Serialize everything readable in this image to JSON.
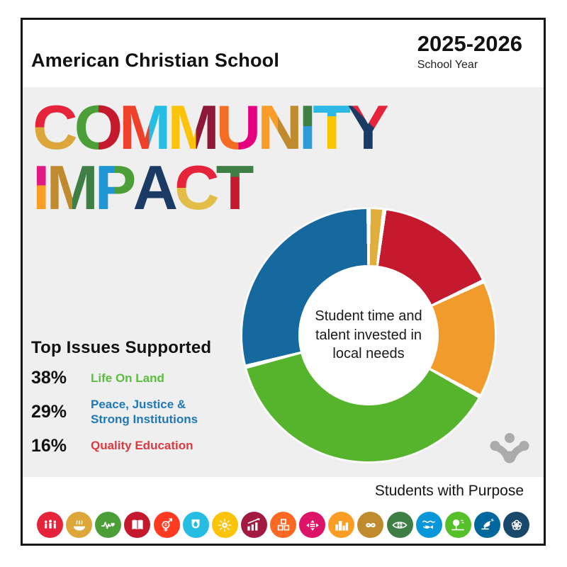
{
  "header": {
    "school_name": "American Christian School",
    "year": "2025-2026",
    "year_label": "School Year"
  },
  "title": {
    "line1": [
      {
        "ch": "C",
        "c1": "#E5243B",
        "c2": "#DDA63A",
        "dir": "b",
        "split": 50
      },
      {
        "ch": "O",
        "c1": "#4C9F38",
        "c2": "#C5192D",
        "dir": "r",
        "split": 50
      },
      {
        "ch": "M",
        "c1": "#EF402B",
        "c2": "#26BDE2",
        "dir": "r",
        "split": 58
      },
      {
        "ch": "M",
        "c1": "#FCC30B",
        "c2": "#8F1838",
        "dir": "r",
        "split": 55
      },
      {
        "ch": "U",
        "c1": "#F36D25",
        "c2": "#E5007D",
        "dir": "r",
        "split": 50
      },
      {
        "ch": "N",
        "c1": "#F99D26",
        "c2": "#BF8B2E",
        "dir": "r",
        "split": 45
      },
      {
        "ch": "I",
        "c1": "#3F7E44",
        "c2": "#2C9BD8",
        "dir": "b",
        "split": 48
      },
      {
        "ch": "T",
        "c1": "#2EB8E6",
        "c2": "#F7C500",
        "dir": "b",
        "split": 32
      },
      {
        "ch": "Y",
        "c1": "#1B3A64",
        "c2": "#E5243B",
        "dir": "d",
        "split": 55
      }
    ],
    "line2": [
      {
        "ch": "I",
        "c1": "#E01A83",
        "c2": "#F99D26",
        "dir": "b",
        "split": 46
      },
      {
        "ch": "M",
        "c1": "#BF8B2E",
        "c2": "#3F7E44",
        "dir": "r",
        "split": 50
      },
      {
        "ch": "P",
        "c1": "#2196D4",
        "c2": "#4C9F38",
        "dir": "r",
        "split": 48
      },
      {
        "ch": "A",
        "c1": "#1B3A64",
        "c2": "#1B3A64",
        "dir": "b",
        "split": 50
      },
      {
        "ch": "C",
        "c1": "#E5243B",
        "c2": "#E2BE49",
        "dir": "b",
        "split": 50
      },
      {
        "ch": "T",
        "c1": "#3F7E44",
        "c2": "#C5192D",
        "dir": "b",
        "split": 32
      }
    ]
  },
  "chart_data": {
    "type": "pie",
    "variant": "donut",
    "center_label": "Student time and talent invested in local needs",
    "start_angle_deg": 0,
    "direction": "clockwise",
    "total": 100,
    "segments": [
      {
        "label": "",
        "value": 2,
        "color": "#DFAE3C"
      },
      {
        "label": "Quality Education",
        "value": 16,
        "color": "#C5192D"
      },
      {
        "label": "",
        "value": 15,
        "color": "#F19B2C"
      },
      {
        "label": "Life On Land",
        "value": 38,
        "color": "#56B42C"
      },
      {
        "label": "Peace, Justice & Strong Institutions",
        "value": 29,
        "color": "#16699F"
      }
    ]
  },
  "top_issues": {
    "heading": "Top Issues Supported",
    "items": [
      {
        "percent": "38%",
        "label": "Life On Land",
        "color": "#5ABE3C"
      },
      {
        "percent": "29%",
        "label": "Peace, Justice & Strong Institutions",
        "color": "#1F78B8"
      },
      {
        "percent": "16%",
        "label": "Quality Education",
        "color": "#DB3A42"
      }
    ]
  },
  "footer": {
    "brand": "Students with Purpose"
  },
  "logo_color": "#ABABAB",
  "sdg_icons": [
    {
      "name": "no-poverty",
      "color": "#E5243B"
    },
    {
      "name": "zero-hunger",
      "color": "#DDA63A"
    },
    {
      "name": "good-health",
      "color": "#4C9F38"
    },
    {
      "name": "quality-education",
      "color": "#C5192D"
    },
    {
      "name": "gender-equality",
      "color": "#FF3A21"
    },
    {
      "name": "clean-water",
      "color": "#26BDE2"
    },
    {
      "name": "clean-energy",
      "color": "#FCC30B"
    },
    {
      "name": "economic-growth",
      "color": "#A21942"
    },
    {
      "name": "industry-innovation",
      "color": "#FD6925"
    },
    {
      "name": "reduced-inequalities",
      "color": "#DD1367"
    },
    {
      "name": "sustainable-cities",
      "color": "#FD9D24"
    },
    {
      "name": "responsible-consumption",
      "color": "#BF8B2E"
    },
    {
      "name": "climate-action",
      "color": "#3F7E44"
    },
    {
      "name": "life-below-water",
      "color": "#0A97D9"
    },
    {
      "name": "life-on-land",
      "color": "#56C02B"
    },
    {
      "name": "peace-justice",
      "color": "#00689D"
    },
    {
      "name": "partnerships",
      "color": "#19486A"
    }
  ]
}
